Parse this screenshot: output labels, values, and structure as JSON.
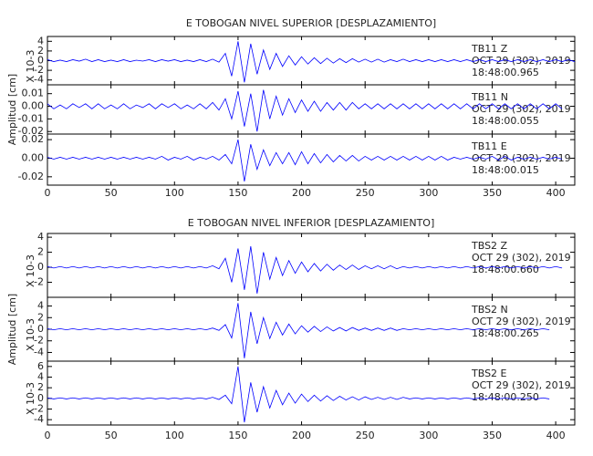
{
  "chart_data": [
    {
      "type": "line",
      "title": "E TOBOGAN NIVEL SUPERIOR [DESPLAZAMIENTO]",
      "ylabel": "Amplitud [cm]",
      "color": "#0000ff",
      "xlim": [
        0,
        415
      ],
      "xticks": [
        0,
        50,
        100,
        150,
        200,
        250,
        300,
        350,
        400
      ],
      "x": [
        0,
        5,
        10,
        15,
        20,
        25,
        30,
        35,
        40,
        45,
        50,
        55,
        60,
        65,
        70,
        75,
        80,
        85,
        90,
        95,
        100,
        105,
        110,
        115,
        120,
        125,
        130,
        135,
        140,
        145,
        150,
        155,
        160,
        165,
        170,
        175,
        180,
        185,
        190,
        195,
        200,
        205,
        210,
        215,
        220,
        225,
        230,
        235,
        240,
        245,
        250,
        255,
        260,
        265,
        270,
        275,
        280,
        285,
        290,
        295,
        300,
        305,
        310,
        315,
        320,
        325,
        330,
        335,
        340,
        345,
        350,
        355,
        360,
        365,
        370,
        375,
        380,
        385,
        390,
        395,
        400,
        405,
        410,
        415
      ],
      "panels": [
        {
          "scale": "X 10-3",
          "labels": [
            "TB11   Z",
            "OCT 29 (302), 2019",
            "18:48:00.965"
          ],
          "ylim": [
            -5,
            5
          ],
          "yticks": [
            4,
            2,
            0,
            -2,
            -4
          ],
          "values": [
            0.2,
            -0.2,
            0.1,
            -0.2,
            0.2,
            -0.1,
            0.3,
            -0.2,
            0.2,
            -0.2,
            0.1,
            -0.2,
            0.2,
            -0.2,
            0.1,
            -0.1,
            0.2,
            -0.2,
            0.2,
            -0.1,
            0.2,
            -0.2,
            0.1,
            -0.2,
            0.2,
            -0.2,
            0.3,
            -0.3,
            1.5,
            -3.2,
            4,
            -4.5,
            3.5,
            -2.8,
            2.2,
            -1.8,
            1.5,
            -1.2,
            1,
            -0.9,
            0.8,
            -0.7,
            0.6,
            -0.6,
            0.5,
            -0.5,
            0.4,
            -0.4,
            0.4,
            -0.3,
            0.3,
            -0.3,
            0.3,
            -0.3,
            0.2,
            -0.2,
            0.3,
            -0.2,
            0.2,
            -0.2,
            0.2,
            -0.2,
            0.2,
            -0.2,
            0.2,
            -0.2,
            0.2,
            -0.2,
            0.2,
            -0.2,
            0.2,
            -0.2,
            0.2,
            -0.2,
            0.2,
            -0.2,
            0.2,
            -0.2,
            0.2,
            -0.2,
            0.2,
            -0.2,
            0.2,
            -0.2
          ]
        },
        {
          "labels": [
            "TB11   N",
            "OCT 29 (302), 2019",
            "18:48:00.055"
          ],
          "ylim": [
            -0.022,
            0.017
          ],
          "yticks": [
            0.01,
            {
              "value": 0,
              "label": "0.00"
            },
            -0.01,
            -0.02
          ],
          "values": [
            0.002,
            -0.002,
            0.001,
            -0.002,
            0.002,
            -0.001,
            0.002,
            -0.002,
            0.002,
            -0.002,
            0.001,
            -0.002,
            0.002,
            -0.002,
            0.001,
            -0.001,
            0.002,
            -0.002,
            0.002,
            -0.001,
            0.002,
            -0.002,
            0.001,
            -0.002,
            0.002,
            -0.002,
            0.003,
            -0.003,
            0.006,
            -0.01,
            0.012,
            -0.016,
            0.01,
            -0.02,
            0.013,
            -0.01,
            0.008,
            -0.007,
            0.006,
            -0.005,
            0.005,
            -0.004,
            0.004,
            -0.004,
            0.003,
            -0.003,
            0.003,
            -0.003,
            0.003,
            -0.002,
            0.002,
            -0.002,
            0.002,
            -0.002,
            0.002,
            -0.002,
            0.002,
            -0.002,
            0.002,
            -0.002,
            0.002,
            -0.002,
            0.002,
            -0.002,
            0.002,
            -0.002,
            0.002,
            -0.002,
            0.002,
            -0.002,
            0.002,
            -0.002,
            0.002,
            -0.002,
            0.002,
            -0.002,
            0.002,
            -0.002,
            0.002,
            -0.002,
            0.002,
            -0.002
          ]
        },
        {
          "labels": [
            "TB11   E",
            "OCT 29 (302), 2019",
            "18:48:00.015"
          ],
          "ylim": [
            -0.029,
            0.026
          ],
          "yticks": [
            0.02,
            {
              "value": 0,
              "label": "0.00"
            },
            -0.02
          ],
          "values": [
            0.001,
            -0.001,
            0.001,
            -0.001,
            0.001,
            -0.001,
            0.001,
            -0.001,
            0.001,
            -0.001,
            0.001,
            -0.001,
            0.001,
            -0.001,
            0.001,
            -0.001,
            0.001,
            -0.001,
            0.002,
            -0.002,
            0.001,
            -0.001,
            0.002,
            -0.002,
            0.001,
            -0.001,
            0.002,
            -0.002,
            0.004,
            -0.006,
            0.02,
            -0.025,
            0.015,
            -0.012,
            0.009,
            -0.008,
            0.006,
            -0.006,
            0.006,
            -0.007,
            0.007,
            -0.006,
            0.005,
            -0.005,
            0.004,
            -0.004,
            0.003,
            -0.003,
            0.003,
            -0.003,
            0.002,
            -0.002,
            0.002,
            -0.002,
            0.002,
            -0.002,
            0.002,
            -0.002,
            0.002,
            -0.002,
            0.002,
            -0.002,
            0.002,
            -0.002,
            0.001,
            -0.001,
            0.001,
            -0.001,
            0.001,
            -0.001,
            0.002,
            -0.002,
            0.002,
            -0.002,
            0.001,
            -0.001,
            0.001,
            -0.001,
            0.001,
            -0.001,
            0.001,
            -0.001
          ]
        }
      ]
    },
    {
      "type": "line",
      "title": "E TOBOGAN NIVEL INFERIOR [DESPLAZAMIENTO]",
      "ylabel": "Amplitud [cm]",
      "color": "#0000ff",
      "xlim": [
        0,
        415
      ],
      "xticks": [
        0,
        50,
        100,
        150,
        200,
        250,
        300,
        350,
        400
      ],
      "x": [
        0,
        5,
        10,
        15,
        20,
        25,
        30,
        35,
        40,
        45,
        50,
        55,
        60,
        65,
        70,
        75,
        80,
        85,
        90,
        95,
        100,
        105,
        110,
        115,
        120,
        125,
        130,
        135,
        140,
        145,
        150,
        155,
        160,
        165,
        170,
        175,
        180,
        185,
        190,
        195,
        200,
        205,
        210,
        215,
        220,
        225,
        230,
        235,
        240,
        245,
        250,
        255,
        260,
        265,
        270,
        275,
        280,
        285,
        290,
        295,
        300,
        305,
        310,
        315,
        320,
        325,
        330,
        335,
        340,
        345,
        350,
        355,
        360,
        365,
        370,
        375,
        380,
        385,
        390,
        395,
        400,
        405,
        410,
        415
      ],
      "panels": [
        {
          "scale": "X 10-3",
          "labels": [
            "TBS2   Z",
            "OCT 29 (302), 2019",
            "18:48:00.660"
          ],
          "ylim": [
            -4,
            4.5
          ],
          "yticks": [
            4,
            2,
            0,
            -2
          ],
          "values": [
            0.1,
            -0.1,
            0.1,
            -0.1,
            0.1,
            -0.1,
            0.1,
            -0.1,
            0.1,
            -0.1,
            0.1,
            -0.1,
            0.1,
            -0.1,
            0.1,
            -0.1,
            0.1,
            -0.1,
            0.1,
            -0.1,
            0.1,
            -0.1,
            0.1,
            -0.1,
            0.1,
            -0.1,
            0.2,
            -0.2,
            1.2,
            -2,
            2.5,
            -3,
            2.8,
            -3.5,
            2,
            -1.6,
            1.3,
            -1.1,
            0.9,
            -0.8,
            0.7,
            -0.6,
            0.5,
            -0.5,
            0.4,
            -0.4,
            0.3,
            -0.3,
            0.3,
            -0.3,
            0.2,
            -0.2,
            0.2,
            -0.2,
            0.2,
            -0.2,
            0.1,
            -0.1,
            0.1,
            -0.1,
            0.1,
            -0.1,
            0.1,
            -0.1,
            0.1,
            -0.1,
            0.1,
            -0.1,
            0.1,
            -0.1,
            0.1,
            -0.1,
            0.1,
            -0.1,
            0.1,
            -0.1,
            0.1,
            -0.1,
            0.1,
            -0.1,
            0.1,
            -0.1
          ]
        },
        {
          "scale": "X 10-3",
          "labels": [
            "TBS2   N",
            "OCT 29 (302), 2019",
            "18:48:00.265"
          ],
          "ylim": [
            -5.5,
            5.5
          ],
          "yticks": [
            4,
            2,
            0,
            -2,
            -4
          ],
          "values": [
            0.1,
            -0.1,
            0.1,
            -0.1,
            0.1,
            -0.1,
            0.1,
            -0.1,
            0.1,
            -0.1,
            0.1,
            -0.1,
            0.1,
            -0.1,
            0.1,
            -0.1,
            0.1,
            -0.1,
            0.1,
            -0.1,
            0.1,
            -0.1,
            0.1,
            -0.1,
            0.1,
            -0.1,
            0.2,
            -0.2,
            0.8,
            -1.5,
            4.5,
            -5,
            3,
            -2.5,
            2,
            -1.6,
            1.2,
            -1,
            0.9,
            -0.8,
            0.6,
            -0.5,
            0.5,
            -0.4,
            0.4,
            -0.3,
            0.3,
            -0.3,
            0.3,
            -0.2,
            0.2,
            -0.2,
            0.2,
            -0.2,
            0.2,
            -0.2,
            0.1,
            -0.1,
            0.1,
            -0.1,
            0.1,
            -0.1,
            0.1,
            -0.1,
            0.1,
            -0.1,
            0.1,
            -0.1,
            0.1,
            -0.1,
            0.1,
            -0.1,
            0.1,
            -0.1,
            0.1,
            -0.1,
            0.1,
            -0.1,
            0.1,
            -0.1
          ]
        },
        {
          "scale": "X 10-3",
          "labels": [
            "TBS2   E",
            "OCT 29 (302), 2019",
            "18:48:00.250"
          ],
          "ylim": [
            -5,
            7
          ],
          "yticks": [
            6,
            4,
            2,
            0,
            -2,
            -4
          ],
          "values": [
            0.1,
            -0.1,
            0.1,
            -0.1,
            0.1,
            -0.1,
            0.1,
            -0.1,
            0.1,
            -0.1,
            0.1,
            -0.1,
            0.1,
            -0.1,
            0.1,
            -0.1,
            0.1,
            -0.1,
            0.1,
            -0.1,
            0.1,
            -0.1,
            0.1,
            -0.1,
            0.1,
            -0.1,
            0.2,
            -0.2,
            0.6,
            -1,
            6,
            -4.5,
            3,
            -2.6,
            2.2,
            -1.8,
            1.5,
            -1.2,
            1,
            -0.9,
            0.8,
            -0.6,
            0.6,
            -0.5,
            0.5,
            -0.4,
            0.4,
            -0.3,
            0.3,
            -0.3,
            0.3,
            -0.2,
            0.2,
            -0.2,
            0.2,
            -0.2,
            0.2,
            -0.1,
            0.1,
            -0.1,
            0.1,
            -0.1,
            0.1,
            -0.1,
            0.1,
            -0.1,
            0.1,
            -0.1,
            0.1,
            -0.1,
            0.1,
            -0.1,
            0.1,
            -0.1,
            0.1,
            -0.1,
            0.1,
            -0.1,
            0.1,
            -0.1
          ]
        }
      ]
    }
  ]
}
